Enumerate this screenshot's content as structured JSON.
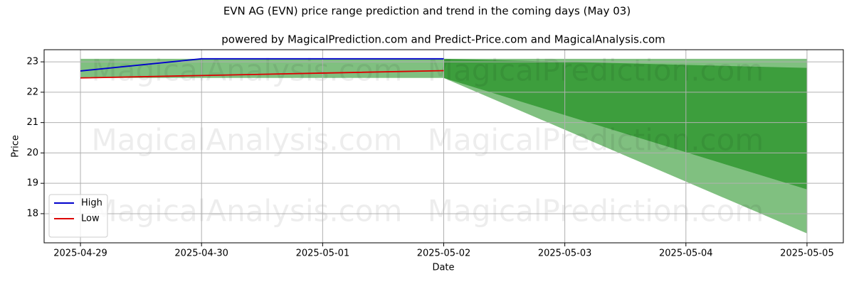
{
  "chart_data": {
    "type": "line",
    "title": "EVN AG (EVN) price range prediction and trend in the coming days (May 03)",
    "subtitle": "powered by MagicalPrediction.com and Predict-Price.com and MagicalAnalysis.com",
    "xlabel": "Date",
    "ylabel": "Price",
    "x": [
      "2025-04-29",
      "2025-04-30",
      "2025-05-01",
      "2025-05-02"
    ],
    "series": [
      {
        "name": "High",
        "color": "#0000cc",
        "values": [
          22.7,
          23.1,
          23.1,
          23.1
        ]
      },
      {
        "name": "Low",
        "color": "#dd0000",
        "values": [
          22.47,
          22.55,
          22.63,
          22.71
        ]
      }
    ],
    "bands": [
      {
        "color": "#80c080",
        "x": [
          "2025-04-29",
          "2025-05-02"
        ],
        "upper": [
          23.1,
          23.1
        ],
        "lower": [
          22.47,
          22.47
        ]
      },
      {
        "color": "#80c080",
        "x": [
          "2025-05-02",
          "2025-05-05"
        ],
        "upper": [
          23.1,
          23.1
        ],
        "lower": [
          22.47,
          17.35
        ]
      },
      {
        "color": "#3d9e3d",
        "x": [
          "2025-05-02",
          "2025-05-05"
        ],
        "upper": [
          23.1,
          22.8
        ],
        "lower": [
          22.47,
          18.8
        ]
      }
    ],
    "xlim": [
      "2025-04-28T16:48",
      "2025-05-05T07:12"
    ],
    "xticks": [
      "2025-04-29",
      "2025-04-30",
      "2025-05-01",
      "2025-05-02",
      "2025-05-03",
      "2025-05-04",
      "2025-05-05"
    ],
    "ylim": [
      17.04,
      23.4
    ],
    "yticks": [
      18,
      19,
      20,
      21,
      22,
      23
    ],
    "grid": true,
    "legend": "lower left",
    "watermarks": [
      "MagicalAnalysis.com",
      "MagicalPrediction.com"
    ]
  }
}
